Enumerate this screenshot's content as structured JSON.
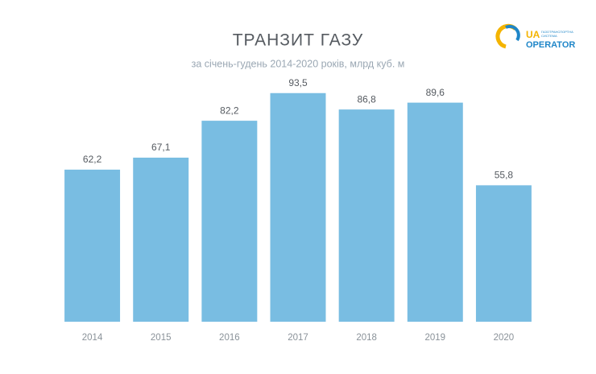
{
  "chart_data": {
    "type": "bar",
    "title": "ТРАНЗИТ ГАЗУ",
    "subtitle": "за січень-гудень 2014-2020 років, млрд куб. м",
    "categories": [
      "2014",
      "2015",
      "2016",
      "2017",
      "2018",
      "2019",
      "2020"
    ],
    "values": [
      62.2,
      67.1,
      82.2,
      93.5,
      86.8,
      89.6,
      55.8
    ],
    "value_labels": [
      "62,2",
      "67,1",
      "82,2",
      "93,5",
      "86,8",
      "89,6",
      "55,8"
    ],
    "color": "#79bde2",
    "ylim": [
      0,
      100
    ]
  },
  "logo": {
    "mark": "UA",
    "name": "OPERATOR",
    "tagline": [
      "ГАЗОТРАНСПОРТНА",
      "СИСТЕМА"
    ]
  }
}
